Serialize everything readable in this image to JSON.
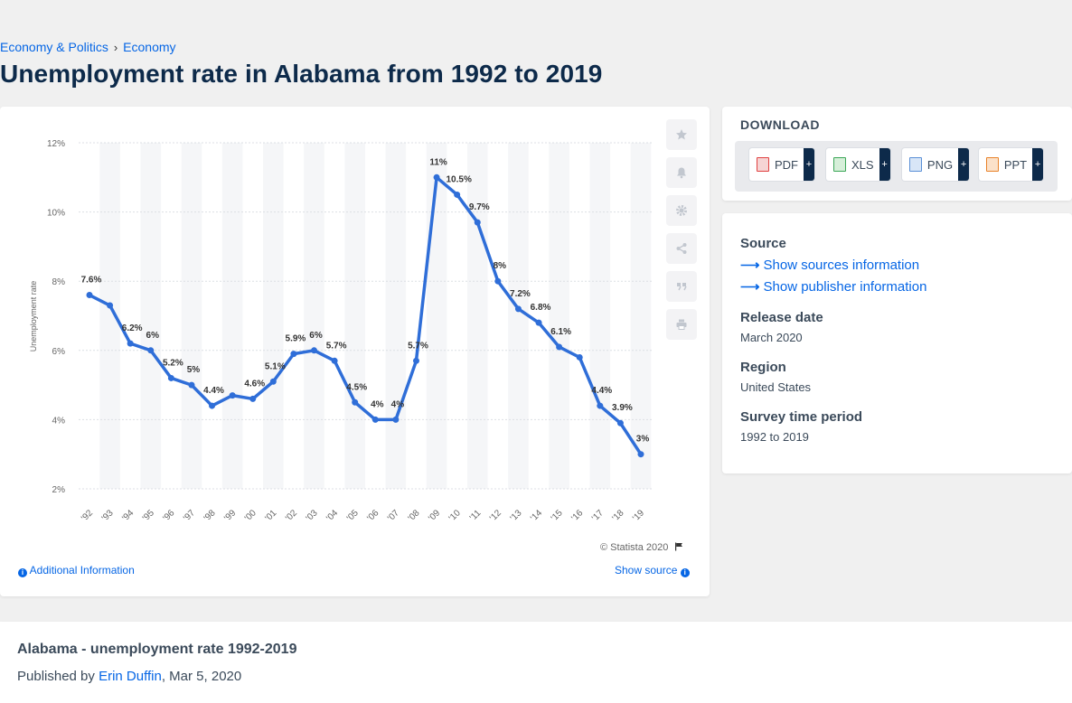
{
  "breadcrumb": {
    "item1": "Economy & Politics",
    "item2": "Economy",
    "separator": "›"
  },
  "page_title": "Unemployment rate in Alabama from 1992 to 2019",
  "chart_card": {
    "copyright": "© Statista 2020",
    "additional_info": "Additional Information",
    "show_source": "Show source",
    "tools": [
      "star-icon",
      "bell-icon",
      "gear-icon",
      "share-icon",
      "quote-icon",
      "print-icon"
    ]
  },
  "download": {
    "title": "DOWNLOAD",
    "buttons": [
      {
        "label": "PDF",
        "color": "#e04040"
      },
      {
        "label": "XLS",
        "color": "#3aa656"
      },
      {
        "label": "PNG",
        "color": "#5a8fd6"
      },
      {
        "label": "PPT",
        "color": "#e8822a"
      }
    ],
    "plus": "+"
  },
  "info": {
    "source_heading": "Source",
    "show_sources": "Show sources information",
    "show_publisher": "Show publisher information",
    "release_heading": "Release date",
    "release_value": "March 2020",
    "region_heading": "Region",
    "region_value": "United States",
    "period_heading": "Survey time period",
    "period_value": "1992 to 2019"
  },
  "bottom": {
    "title": "Alabama - unemployment rate 1992-2019",
    "published_prefix": "Published by",
    "author": "Erin Duffin",
    "date": ", Mar 5, 2020"
  },
  "chart_data": {
    "type": "line",
    "title": "",
    "ylabel": "Unemployment rate",
    "xlabel": "",
    "ylim": [
      2,
      12
    ],
    "yticks": [
      2,
      4,
      6,
      8,
      10,
      12
    ],
    "ytick_labels": [
      "2%",
      "4%",
      "6%",
      "8%",
      "10%",
      "12%"
    ],
    "categories": [
      "'92",
      "'93",
      "'94",
      "'95",
      "'96",
      "'97",
      "'98",
      "'99",
      "'00",
      "'01",
      "'02",
      "'03",
      "'04",
      "'05",
      "'06",
      "'07",
      "'08",
      "'09",
      "'10",
      "'11",
      "'12",
      "'13",
      "'14",
      "'15",
      "'16",
      "'17",
      "'18",
      "'19"
    ],
    "values": [
      7.6,
      7.3,
      6.2,
      6.0,
      5.2,
      5.0,
      4.4,
      4.7,
      4.6,
      5.1,
      5.9,
      6.0,
      5.7,
      4.5,
      4.0,
      4.0,
      5.7,
      11.0,
      10.5,
      9.7,
      8.0,
      7.2,
      6.8,
      6.1,
      5.8,
      4.4,
      3.9,
      3.0
    ],
    "data_labels": [
      "7.6%",
      "",
      "6.2%",
      "6%",
      "5.2%",
      "5%",
      "4.4%",
      "",
      "4.6%",
      "5.1%",
      "5.9%",
      "6%",
      "5.7%",
      "4.5%",
      "4%",
      "4%",
      "5.7%",
      "11%",
      "10.5%",
      "9.7%",
      "8%",
      "7.2%",
      "6.8%",
      "6.1%",
      "",
      "4.4%",
      "3.9%",
      "3%"
    ],
    "line_color": "#2f6ed8",
    "grid": true
  }
}
